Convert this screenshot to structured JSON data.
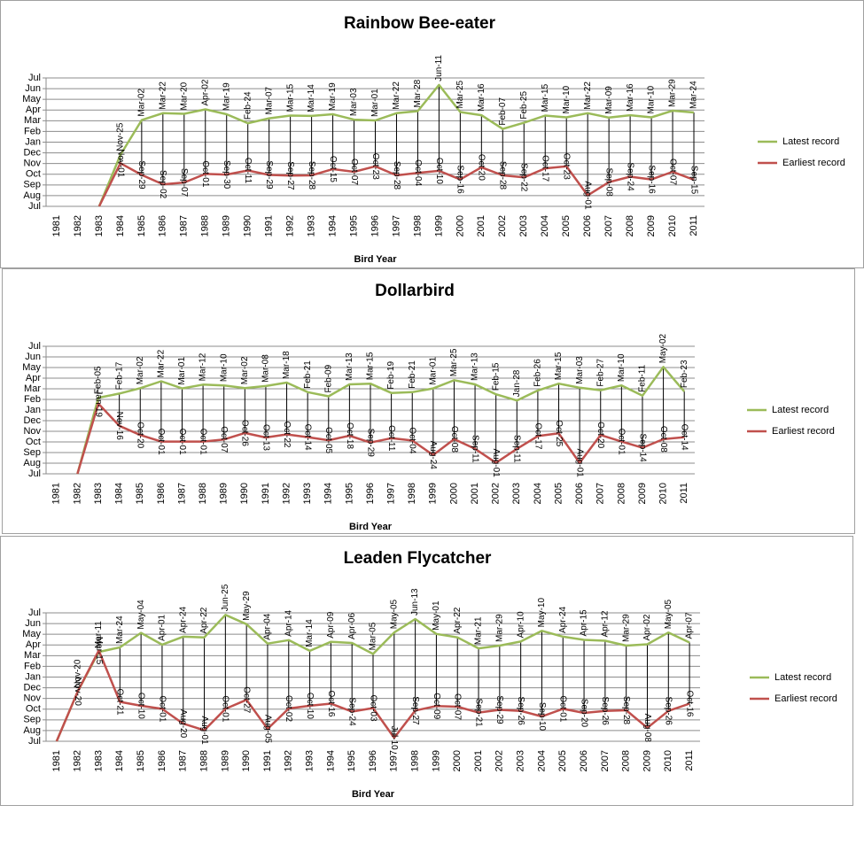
{
  "chart_data": [
    {
      "type": "line",
      "title": "Rainbow Bee-eater",
      "x_label": "Bird Year",
      "categories": [
        1981,
        1982,
        1983,
        1984,
        1985,
        1986,
        1987,
        1988,
        1989,
        1990,
        1991,
        1992,
        1993,
        1994,
        1995,
        1996,
        1997,
        1998,
        1999,
        2000,
        2001,
        2002,
        2003,
        2004,
        2005,
        2006,
        2007,
        2008,
        2009,
        2010,
        2011
      ],
      "ylim": [
        0,
        12
      ],
      "yticks": [
        {
          "value": 0,
          "label": "Jul"
        },
        {
          "value": 1,
          "label": "Aug"
        },
        {
          "value": 2,
          "label": "Sep"
        },
        {
          "value": 3,
          "label": "Oct"
        },
        {
          "value": 4,
          "label": "Nov"
        },
        {
          "value": 5,
          "label": "Dec"
        },
        {
          "value": 6,
          "label": "Jan"
        },
        {
          "value": 7,
          "label": "Feb"
        },
        {
          "value": 8,
          "label": "Mar"
        },
        {
          "value": 9,
          "label": "Apr"
        },
        {
          "value": 10,
          "label": "May"
        },
        {
          "value": 11,
          "label": "Jun"
        },
        {
          "value": 12,
          "label": "Jul"
        }
      ],
      "grid": true,
      "legend": "right",
      "series": [
        {
          "name": "Latest record",
          "color": "#9bbb59",
          "values": [
            null,
            null,
            0,
            4.81,
            8.06,
            8.71,
            8.65,
            9.06,
            8.61,
            7.77,
            8.23,
            8.48,
            8.45,
            8.61,
            8.1,
            8.03,
            8.71,
            8.9,
            11.35,
            8.81,
            8.52,
            7.23,
            7.81,
            8.48,
            8.32,
            8.71,
            8.29,
            8.52,
            8.32,
            8.94,
            8.77
          ],
          "value_labels": [
            null,
            null,
            null,
            "Nov-25",
            "Mar-02",
            "Mar-22",
            "Mar-20",
            "Apr-02",
            "Mar-19",
            "Feb-24",
            "Mar-07",
            "Mar-15",
            "Mar-14",
            "Mar-19",
            "Mar-03",
            "Mar-01",
            "Mar-22",
            "Mar-28",
            "Jun-11",
            "Mar-25",
            "Mar-16",
            "Feb-07",
            "Feb-25",
            "Mar-15",
            "Mar-10",
            "Mar-22",
            "Mar-09",
            "Mar-16",
            "Mar-10",
            "Mar-29",
            "Mar-24"
          ]
        },
        {
          "name": "Earliest record",
          "color": "#c0504d",
          "values": [
            null,
            null,
            0,
            4.03,
            2.94,
            2.06,
            2.23,
            3.03,
            2.97,
            3.35,
            2.94,
            2.87,
            2.9,
            3.48,
            3.23,
            3.74,
            2.9,
            3.13,
            3.32,
            2.52,
            3.65,
            2.9,
            2.71,
            3.55,
            3.74,
            1.03,
            2.26,
            2.77,
            2.52,
            3.23,
            2.48
          ],
          "value_labels": [
            null,
            null,
            null,
            "Nov-01",
            "Sep-29",
            "Sep-02",
            "Sep-07",
            "Oct-01",
            "Sep-30",
            "Oct-11",
            "Sep-29",
            "Sep-27",
            "Sep-28",
            "Oct-15",
            "Oct-07",
            "Oct-23",
            "Sep-28",
            "Oct-04",
            "Oct-10",
            "Sep-16",
            "Oct-20",
            "Sep-28",
            "Sep-22",
            "Oct-17",
            "Oct-23",
            "Aug-01",
            "Sep-08",
            "Sep-24",
            "Sep-16",
            "Oct-07",
            "Sep-15"
          ]
        }
      ]
    },
    {
      "type": "line",
      "title": "Dollarbird",
      "x_label": "Bird Year",
      "categories": [
        1981,
        1982,
        1983,
        1984,
        1985,
        1986,
        1987,
        1988,
        1989,
        1990,
        1991,
        1992,
        1993,
        1994,
        1995,
        1996,
        1997,
        1998,
        1999,
        2000,
        2001,
        2002,
        2003,
        2004,
        2005,
        2006,
        2007,
        2008,
        2009,
        2010,
        2011
      ],
      "ylim": [
        0,
        12
      ],
      "yticks": [
        {
          "value": 0,
          "label": "Jul"
        },
        {
          "value": 1,
          "label": "Aug"
        },
        {
          "value": 2,
          "label": "Sep"
        },
        {
          "value": 3,
          "label": "Oct"
        },
        {
          "value": 4,
          "label": "Nov"
        },
        {
          "value": 5,
          "label": "Dec"
        },
        {
          "value": 6,
          "label": "Jan"
        },
        {
          "value": 7,
          "label": "Feb"
        },
        {
          "value": 8,
          "label": "Mar"
        },
        {
          "value": 9,
          "label": "Apr"
        },
        {
          "value": 10,
          "label": "May"
        },
        {
          "value": 11,
          "label": "Jun"
        },
        {
          "value": 12,
          "label": "Jul"
        }
      ],
      "grid": true,
      "legend": "right",
      "series": [
        {
          "name": "Latest record",
          "color": "#9bbb59",
          "values": [
            null,
            0,
            7.16,
            7.55,
            8.06,
            8.71,
            8.03,
            8.39,
            8.32,
            8.06,
            8.26,
            8.58,
            7.68,
            7.29,
            8.42,
            8.48,
            7.61,
            7.68,
            8.03,
            8.81,
            8.42,
            7.48,
            6.9,
            7.84,
            8.48,
            8.1,
            7.87,
            8.32,
            7.35,
            10.06,
            7.74
          ],
          "value_labels": [
            null,
            null,
            "Feb-05",
            "Feb-17",
            "Mar-02",
            "Mar-22",
            "Mar-01",
            "Mar-12",
            "Mar-10",
            "Mar-02",
            "Mar-08",
            "Mar-18",
            "Feb-21",
            "Feb-09",
            "Mar-13",
            "Mar-15",
            "Feb-19",
            "Feb-21",
            "Mar-01",
            "Mar-25",
            "Mar-13",
            "Feb-15",
            "Jan-28",
            "Feb-26",
            "Mar-15",
            "Mar-03",
            "Feb-27",
            "Mar-10",
            "Feb-11",
            "May-02",
            "Feb-23"
          ]
        },
        {
          "name": "Earliest record",
          "color": "#c0504d",
          "values": [
            null,
            0,
            6.61,
            4.52,
            3.65,
            3.03,
            3.03,
            3.03,
            3.23,
            3.84,
            3.42,
            3.71,
            3.45,
            3.16,
            3.58,
            2.94,
            3.35,
            3.13,
            1.77,
            3.26,
            2.35,
            1.03,
            2.35,
            3.55,
            3.81,
            1.03,
            3.65,
            3.03,
            2.45,
            3.26,
            3.45
          ],
          "value_labels": [
            null,
            null,
            "Jan-19",
            "Nov-16",
            "Oct-20",
            "Oct-01",
            "Oct-01",
            "Oct-01",
            "Oct-07",
            "Oct-26",
            "Oct-13",
            "Oct-22",
            "Oct-14",
            "Oct-05",
            "Oct-18",
            "Sep-29",
            "Oct-11",
            "Oct-04",
            "Aug-24",
            "Oct-08",
            "Sep-11",
            "Aug-01",
            "Sep-11",
            "Oct-17",
            "Oct-25",
            "Aug-01",
            "Oct-20",
            "Oct-01",
            "Sep-14",
            "Oct-08",
            "Oct-14"
          ]
        }
      ]
    },
    {
      "type": "line",
      "title": "Leaden Flycatcher",
      "x_label": "Bird Year",
      "categories": [
        1981,
        1982,
        1983,
        1984,
        1985,
        1986,
        1987,
        1988,
        1989,
        1990,
        1991,
        1992,
        1993,
        1994,
        1995,
        1996,
        1997,
        1998,
        1999,
        2000,
        2001,
        2002,
        2003,
        2004,
        2005,
        2006,
        2007,
        2008,
        2009,
        2010,
        2011
      ],
      "ylim": [
        0,
        12
      ],
      "yticks": [
        {
          "value": 0,
          "label": "Jul"
        },
        {
          "value": 1,
          "label": "Aug"
        },
        {
          "value": 2,
          "label": "Sep"
        },
        {
          "value": 3,
          "label": "Oct"
        },
        {
          "value": 4,
          "label": "Nov"
        },
        {
          "value": 5,
          "label": "Dec"
        },
        {
          "value": 6,
          "label": "Jan"
        },
        {
          "value": 7,
          "label": "Feb"
        },
        {
          "value": 8,
          "label": "Mar"
        },
        {
          "value": 9,
          "label": "Apr"
        },
        {
          "value": 10,
          "label": "May"
        },
        {
          "value": 11,
          "label": "Jun"
        },
        {
          "value": 12,
          "label": "Jul"
        }
      ],
      "grid": true,
      "legend": "right",
      "series": [
        {
          "name": "Latest record",
          "color": "#9bbb59",
          "values": [
            0,
            4.65,
            8.35,
            8.77,
            10.13,
            9.03,
            9.77,
            9.71,
            11.81,
            10.94,
            9.13,
            9.45,
            8.45,
            9.29,
            9.19,
            8.16,
            10.16,
            11.42,
            10.03,
            9.71,
            8.68,
            8.94,
            9.32,
            10.32,
            9.77,
            9.48,
            9.39,
            8.94,
            9.06,
            10.16,
            9.23
          ],
          "value_labels": [
            null,
            "Nov-20",
            "Mar-11",
            "Mar-24",
            "May-04",
            "Apr-01",
            "Apr-24",
            "Apr-22",
            "Jun-25",
            "May-29",
            "Apr-04",
            "Apr-14",
            "Mar-14",
            "Apr-09",
            "Apr-06",
            "Mar-05",
            "May-05",
            "Jun-13",
            "May-01",
            "Apr-22",
            "Mar-21",
            "Mar-29",
            "Apr-10",
            "May-10",
            "Apr-24",
            "Apr-15",
            "Apr-12",
            "Mar-29",
            "Apr-02",
            "May-05",
            "Apr-07"
          ]
        },
        {
          "name": "Earliest record",
          "color": "#c0504d",
          "values": [
            0,
            4.65,
            8.48,
            3.68,
            3.32,
            3.03,
            1.65,
            1.03,
            3.03,
            3.87,
            1.16,
            3.06,
            3.32,
            3.52,
            2.77,
            3.1,
            0.32,
            2.87,
            3.29,
            3.23,
            2.68,
            2.94,
            2.84,
            2.32,
            3.03,
            2.65,
            2.84,
            2.9,
            1.26,
            2.84,
            3.52
          ],
          "value_labels": [
            null,
            "Nov-20",
            "Mar-15",
            "Oct-21",
            "Oct-10",
            "Oct-01",
            "Aug-20",
            "Aug-01",
            "Oct-01",
            "Oct-27",
            "Aug-05",
            "Oct-02",
            "Oct-10",
            "Oct-16",
            "Sep-24",
            "Oct-03",
            "Jul-10",
            "Sep-27",
            "Oct-09",
            "Oct-07",
            "Sep-21",
            "Sep-29",
            "Sep-26",
            "Sep-10",
            "Oct-01",
            "Sep-20",
            "Sep-26",
            "Sep-28",
            "Aug-08",
            "Sep-26",
            "Oct-16"
          ]
        }
      ]
    }
  ]
}
